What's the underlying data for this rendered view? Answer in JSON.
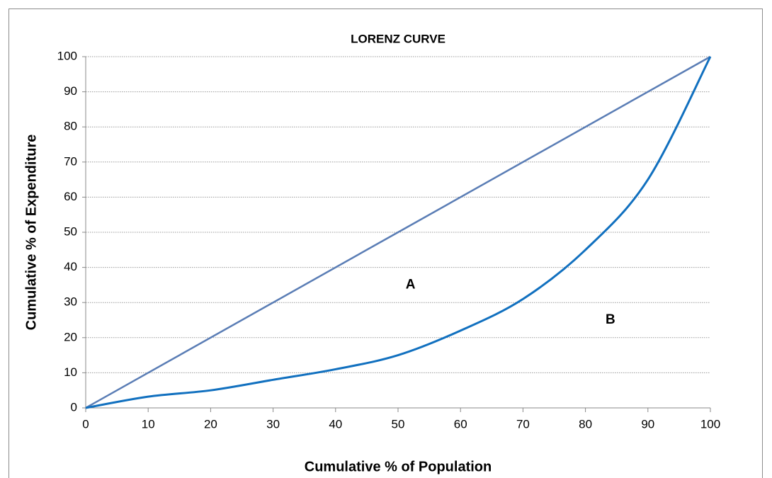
{
  "chart_data": {
    "type": "line",
    "title": "LORENZ CURVE",
    "xlabel": "Cumulative % of Population",
    "ylabel": "Cumulative % of Expenditure",
    "xlim": [
      0,
      100
    ],
    "xticks": [
      0,
      10,
      20,
      30,
      40,
      50,
      60,
      70,
      80,
      90,
      100
    ],
    "ylim": [
      0,
      100
    ],
    "yticks": [
      0,
      10,
      20,
      30,
      40,
      50,
      60,
      70,
      80,
      90,
      100
    ],
    "grid": true,
    "series": [
      {
        "color": "#5a7db5",
        "x": [
          0,
          100
        ],
        "values": [
          0,
          100
        ]
      },
      {
        "color": "#1170bf",
        "x": [
          0,
          10,
          20,
          30,
          40,
          50,
          60,
          70,
          80,
          90,
          100
        ],
        "values": [
          0,
          3.2,
          5,
          8,
          11,
          15,
          22,
          31,
          45,
          65,
          100
        ]
      }
    ],
    "annotations": [
      {
        "text": "A"
      },
      {
        "text": "B"
      }
    ]
  }
}
